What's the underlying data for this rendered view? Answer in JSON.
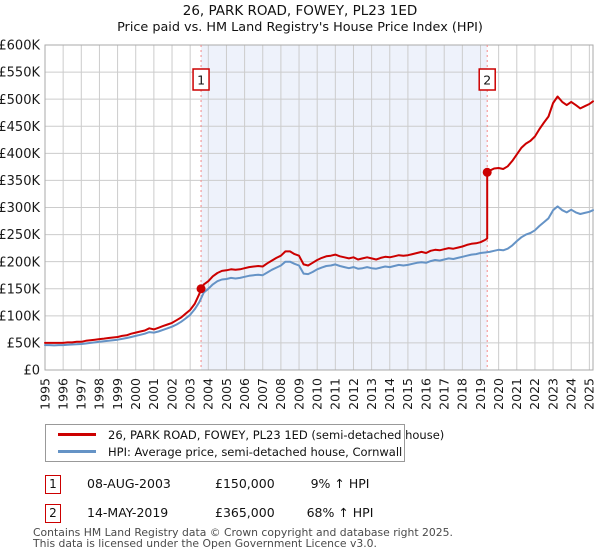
{
  "title": "26, PARK ROAD, FOWEY, PL23 1ED",
  "subtitle": "Price paid vs. HM Land Registry's House Price Index (HPI)",
  "chart_data": {
    "type": "line",
    "title": "26, PARK ROAD, FOWEY, PL23 1ED",
    "subtitle": "Price paid vs. HM Land Registry's House Price Index (HPI)",
    "ylim": [
      0,
      600000
    ],
    "values_unit": "GBP thousands",
    "x_tick_labels": [
      "1995",
      "1996",
      "1997",
      "1998",
      "1999",
      "2000",
      "2001",
      "2002",
      "2003",
      "2004",
      "2005",
      "2006",
      "2007",
      "2008",
      "2009",
      "2010",
      "2011",
      "2012",
      "2013",
      "2014",
      "2015",
      "2016",
      "2017",
      "2018",
      "2019",
      "2020",
      "2021",
      "2022",
      "2023",
      "2024",
      "2025"
    ],
    "y_ticks": [
      0,
      50,
      100,
      150,
      200,
      250,
      300,
      350,
      400,
      450,
      500,
      550,
      600
    ],
    "y_tick_labels": [
      "£0",
      "£50K",
      "£100K",
      "£150K",
      "£200K",
      "£250K",
      "£300K",
      "£350K",
      "£400K",
      "£450K",
      "£500K",
      "£550K",
      "£600K"
    ],
    "grid": true,
    "legend_position": "bottom",
    "shaded_region": [
      2003.6,
      2019.37
    ],
    "colors": {
      "red": "#cc0000",
      "blue": "#6593c6",
      "band": "#eef2fb",
      "dashed": "#f38a8a",
      "grid": "#cccccc",
      "frame": "#aaaaaa"
    },
    "series": [
      {
        "name": "26, PARK ROAD, FOWEY, PL23 1ED (semi-detached house)",
        "color": "#cc0000",
        "x": [
          1995,
          1995.25,
          1995.5,
          1995.75,
          1996,
          1996.25,
          1996.5,
          1996.75,
          1997,
          1997.25,
          1997.5,
          1997.75,
          1998,
          1998.25,
          1998.5,
          1998.75,
          1999,
          1999.25,
          1999.5,
          1999.75,
          2000,
          2000.25,
          2000.5,
          2000.75,
          2001,
          2001.25,
          2001.5,
          2001.75,
          2002,
          2002.25,
          2002.5,
          2002.75,
          2003,
          2003.25,
          2003.5,
          2003.75,
          2004,
          2004.25,
          2004.5,
          2004.75,
          2005,
          2005.25,
          2005.5,
          2005.75,
          2006,
          2006.25,
          2006.5,
          2006.75,
          2007,
          2007.25,
          2007.5,
          2007.75,
          2008,
          2008.25,
          2008.5,
          2008.75,
          2009,
          2009.25,
          2009.5,
          2009.75,
          2010,
          2010.25,
          2010.5,
          2010.75,
          2011,
          2011.25,
          2011.5,
          2011.75,
          2012,
          2012.25,
          2012.5,
          2012.75,
          2013,
          2013.25,
          2013.5,
          2013.75,
          2014,
          2014.25,
          2014.5,
          2014.75,
          2015,
          2015.25,
          2015.5,
          2015.75,
          2016,
          2016.25,
          2016.5,
          2016.75,
          2017,
          2017.25,
          2017.5,
          2017.75,
          2018,
          2018.25,
          2018.5,
          2018.75,
          2019,
          2019.25,
          2019.37,
          2019.37,
          2019.5,
          2019.75,
          2020,
          2020.25,
          2020.5,
          2020.75,
          2021,
          2021.25,
          2021.5,
          2021.75,
          2022,
          2022.25,
          2022.5,
          2022.75,
          2023,
          2023.25,
          2023.5,
          2023.75,
          2024,
          2024.25,
          2024.5,
          2024.75,
          2025,
          2025.2
        ],
        "values": [
          50,
          50,
          50,
          50,
          50,
          51,
          51,
          52,
          52,
          54,
          55,
          56,
          57,
          58,
          59,
          60,
          61,
          63,
          64,
          67,
          69,
          71,
          73,
          77,
          75,
          78,
          81,
          84,
          87,
          92,
          97,
          104,
          111,
          122,
          140,
          158,
          164,
          173,
          179,
          183,
          184,
          186,
          185,
          186,
          188,
          190,
          191,
          192,
          191,
          197,
          202,
          207,
          211,
          219,
          219,
          214,
          211,
          195,
          193,
          198,
          203,
          207,
          210,
          211,
          213,
          210,
          208,
          206,
          208,
          204,
          206,
          208,
          206,
          204,
          207,
          209,
          208,
          210,
          212,
          211,
          212,
          214,
          216,
          218,
          216,
          220,
          222,
          221,
          223,
          225,
          224,
          226,
          228,
          231,
          233,
          234,
          236,
          240,
          243,
          365,
          368,
          372,
          373,
          371,
          376,
          386,
          398,
          410,
          418,
          423,
          431,
          445,
          457,
          468,
          493,
          505,
          495,
          489,
          495,
          489,
          483,
          487,
          491,
          496
        ]
      },
      {
        "name": "HPI: Average price, semi-detached house, Cornwall",
        "color": "#6593c6",
        "x": [
          1995,
          1995.25,
          1995.5,
          1995.75,
          1996,
          1996.25,
          1996.5,
          1996.75,
          1997,
          1997.25,
          1997.5,
          1997.75,
          1998,
          1998.25,
          1998.5,
          1998.75,
          1999,
          1999.25,
          1999.5,
          1999.75,
          2000,
          2000.25,
          2000.5,
          2000.75,
          2001,
          2001.25,
          2001.5,
          2001.75,
          2002,
          2002.25,
          2002.5,
          2002.75,
          2003,
          2003.25,
          2003.5,
          2003.75,
          2004,
          2004.25,
          2004.5,
          2004.75,
          2005,
          2005.25,
          2005.5,
          2005.75,
          2006,
          2006.25,
          2006.5,
          2006.75,
          2007,
          2007.25,
          2007.5,
          2007.75,
          2008,
          2008.25,
          2008.5,
          2008.75,
          2009,
          2009.25,
          2009.5,
          2009.75,
          2010,
          2010.25,
          2010.5,
          2010.75,
          2011,
          2011.25,
          2011.5,
          2011.75,
          2012,
          2012.25,
          2012.5,
          2012.75,
          2013,
          2013.25,
          2013.5,
          2013.75,
          2014,
          2014.25,
          2014.5,
          2014.75,
          2015,
          2015.25,
          2015.5,
          2015.75,
          2016,
          2016.25,
          2016.5,
          2016.75,
          2017,
          2017.25,
          2017.5,
          2017.75,
          2018,
          2018.25,
          2018.5,
          2018.75,
          2019,
          2019.25,
          2019.5,
          2019.75,
          2020,
          2020.25,
          2020.5,
          2020.75,
          2021,
          2021.25,
          2021.5,
          2021.75,
          2022,
          2022.25,
          2022.5,
          2022.75,
          2023,
          2023.25,
          2023.5,
          2023.75,
          2024,
          2024.25,
          2024.5,
          2024.75,
          2025,
          2025.2
        ],
        "values": [
          46,
          46,
          45.5,
          46,
          46,
          46.5,
          47,
          47.5,
          48,
          49,
          50,
          51,
          52,
          53,
          54,
          55,
          56,
          57.5,
          59,
          61,
          63,
          65,
          67,
          70,
          69,
          71,
          74,
          77,
          80,
          84,
          89,
          95,
          102,
          112,
          125,
          143,
          150,
          158,
          164,
          167,
          168,
          170,
          169,
          170,
          172,
          174,
          175,
          176,
          175,
          180,
          185,
          189,
          193,
          200,
          200,
          196,
          193,
          178,
          177,
          181,
          186,
          189,
          192,
          193,
          195,
          192,
          190,
          188,
          190,
          187,
          188,
          190,
          188,
          187,
          189,
          191,
          190,
          192,
          194,
          193,
          194,
          196,
          198,
          199,
          198,
          201,
          203,
          202,
          204,
          206,
          205,
          207,
          209,
          211,
          213,
          214,
          216,
          217,
          218,
          220,
          222,
          221,
          224,
          230,
          238,
          245,
          250,
          253,
          258,
          266,
          273,
          280,
          295,
          302,
          295,
          291,
          296,
          291,
          288,
          290,
          292,
          295
        ]
      }
    ],
    "sales": [
      {
        "label": "1",
        "x": 2003.6,
        "price_k": 150,
        "date": "08-AUG-2003",
        "price": "£150,000",
        "hpi_delta": "9% ↑ HPI"
      },
      {
        "label": "2",
        "x": 2019.37,
        "price_k": 365,
        "date": "14-MAY-2019",
        "price": "£365,000",
        "hpi_delta": "68% ↑ HPI"
      }
    ]
  },
  "legend": {
    "items": [
      {
        "label": "26, PARK ROAD, FOWEY, PL23 1ED (semi-detached house)",
        "color": "#cc0000"
      },
      {
        "label": "HPI: Average price, semi-detached house, Cornwall",
        "color": "#6593c6"
      }
    ]
  },
  "annotations": [
    {
      "num": "1",
      "date": "08-AUG-2003",
      "price": "£150,000",
      "delta": "9% ↑ HPI"
    },
    {
      "num": "2",
      "date": "14-MAY-2019",
      "price": "£365,000",
      "delta": "68% ↑ HPI"
    }
  ],
  "footer": {
    "line1": "Contains HM Land Registry data © Crown copyright and database right 2025.",
    "line2": "This data is licensed under the Open Government Licence v3.0."
  }
}
